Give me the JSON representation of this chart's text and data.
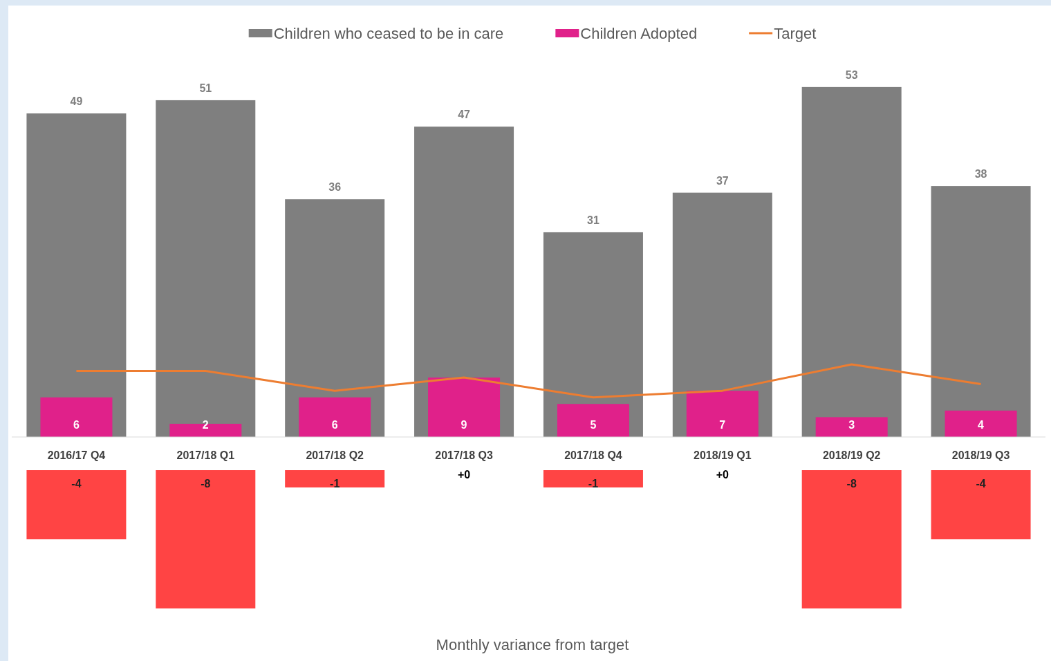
{
  "chart_data": [
    {
      "type": "bar",
      "categories": [
        "2016/17 Q4",
        "2017/18 Q1",
        "2017/18 Q2",
        "2017/18 Q3",
        "2017/18 Q4",
        "2018/19 Q1",
        "2018/19 Q2",
        "2018/19 Q3"
      ],
      "tick_labels": "x",
      "legend": "top",
      "series": [
        {
          "name": "Children who ceased to be in care",
          "color": "#7f7f7f",
          "values": [
            49,
            51,
            36,
            47,
            31,
            37,
            53,
            38
          ],
          "value_labels": [
            "49",
            "51",
            "36",
            "47",
            "31",
            "37",
            "53",
            "38"
          ]
        },
        {
          "name": "Children Adopted",
          "color": "#e0218a",
          "values": [
            6,
            2,
            6,
            9,
            5,
            7,
            3,
            4
          ],
          "value_labels": [
            "6",
            "2",
            "6",
            "9",
            "5",
            "7",
            "3",
            "4"
          ]
        },
        {
          "name": "Target",
          "type": "line",
          "color": "#ed7d31",
          "values": [
            10,
            10,
            7,
            9,
            6,
            7,
            11,
            8
          ]
        }
      ]
    },
    {
      "type": "bar",
      "categories": [
        null,
        null,
        null,
        null,
        null,
        null,
        null,
        null
      ],
      "ylim": [
        -8,
        0
      ],
      "tick_labels": false,
      "xlabel": "Monthly variance from target",
      "series": [
        {
          "color": "#ff4444",
          "values": [
            -4,
            -8,
            -1,
            0,
            -1,
            0,
            -8,
            -4
          ],
          "value_labels": [
            "-4",
            "-8",
            "-1",
            "+0",
            "-1",
            "+0",
            "-8",
            "-4"
          ]
        }
      ]
    }
  ]
}
